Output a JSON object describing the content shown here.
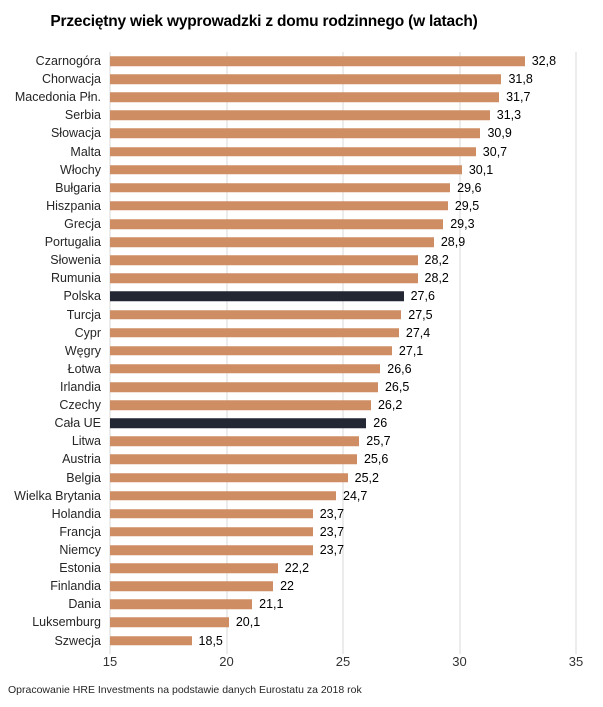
{
  "footer": {
    "text": "Opracowanie HRE Investments na podstawie danych Eurostatu za 2018 rok"
  },
  "chart_data": {
    "type": "bar",
    "orientation": "horizontal",
    "title": "Przeciętny wiek wyprowadzki z domu rodzinnego (w latach)",
    "xlabel": "",
    "ylabel": "",
    "xlim": [
      15,
      35
    ],
    "x_ticks": [
      15,
      20,
      25,
      30,
      35
    ],
    "grid": true,
    "legend": "none",
    "bar_color": "#CE8D63",
    "highlight_color": "#222733",
    "gridline_color": "#d9d9d9",
    "highlighted": [
      "Polska",
      "Cała UE"
    ],
    "categories": [
      "Czarnogóra",
      "Chorwacja",
      "Macedonia Płn.",
      "Serbia",
      "Słowacja",
      "Malta",
      "Włochy",
      "Bułgaria",
      "Hiszpania",
      "Grecja",
      "Portugalia",
      "Słowenia",
      "Rumunia",
      "Polska",
      "Turcja",
      "Cypr",
      "Węgry",
      "Łotwa",
      "Irlandia",
      "Czechy",
      "Cała UE",
      "Litwa",
      "Austria",
      "Belgia",
      "Wielka Brytania",
      "Holandia",
      "Francja",
      "Niemcy",
      "Estonia",
      "Finlandia",
      "Dania",
      "Luksemburg",
      "Szwecja"
    ],
    "values": [
      32.8,
      31.8,
      31.7,
      31.3,
      30.9,
      30.7,
      30.1,
      29.6,
      29.5,
      29.3,
      28.9,
      28.2,
      28.2,
      27.6,
      27.5,
      27.4,
      27.1,
      26.6,
      26.5,
      26.2,
      26,
      25.7,
      25.6,
      25.2,
      24.7,
      23.7,
      23.7,
      23.7,
      22.2,
      22,
      21.1,
      20.1,
      18.5
    ],
    "value_labels": [
      "32,8",
      "31,8",
      "31,7",
      "31,3",
      "30,9",
      "30,7",
      "30,1",
      "29,6",
      "29,5",
      "29,3",
      "28,9",
      "28,2",
      "28,2",
      "27,6",
      "27,5",
      "27,4",
      "27,1",
      "26,6",
      "26,5",
      "26,2",
      "26",
      "25,7",
      "25,6",
      "25,2",
      "24,7",
      "23,7",
      "23,7",
      "23,7",
      "22,2",
      "22",
      "21,1",
      "20,1",
      "18,5"
    ]
  }
}
